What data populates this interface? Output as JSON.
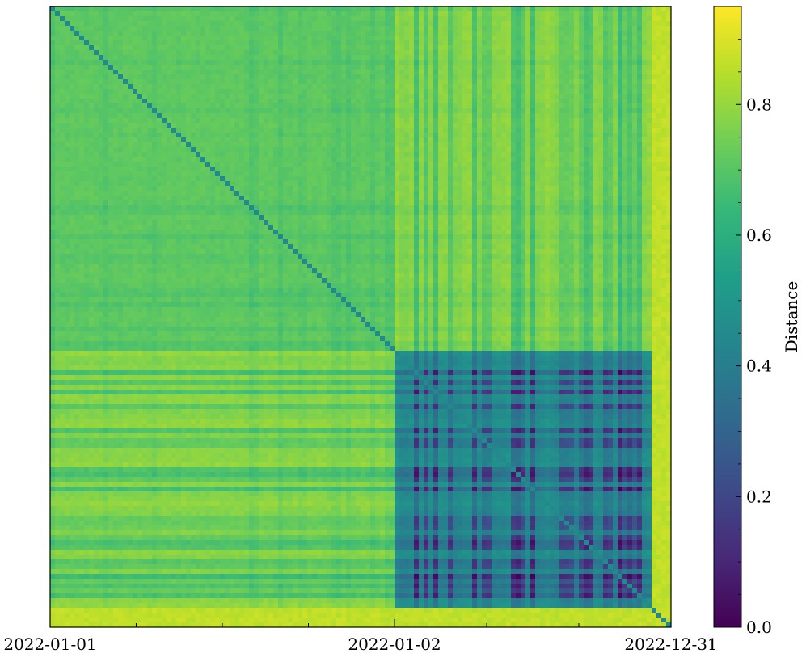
{
  "chart_data": {
    "type": "heatmap",
    "title": "",
    "xlabel": "",
    "ylabel": "",
    "x_tick_labels": [
      "2022-01-01",
      "2022-01-02",
      "2022-12-31"
    ],
    "colormap": "viridis",
    "colorbar": {
      "label": "Distance",
      "range": [
        0.0,
        0.95
      ],
      "ticks": [
        0.0,
        0.2,
        0.4,
        0.6,
        0.8
      ],
      "tick_labels": [
        "0.0",
        "0.2",
        "0.4",
        "0.6",
        "0.8"
      ]
    },
    "diagonal_value": 0.45,
    "blocks": [
      {
        "rows": "first 55%",
        "cols": "first 55%",
        "distance": 0.72
      },
      {
        "rows": "first 55%",
        "cols": "last 45%",
        "distance": 0.8
      },
      {
        "rows": "last 45%",
        "cols": "first 55%",
        "distance": 0.8
      },
      {
        "rows": "last 45%",
        "cols": "last 45%",
        "distance": 0.5
      }
    ],
    "grid": false,
    "legend": "none"
  }
}
